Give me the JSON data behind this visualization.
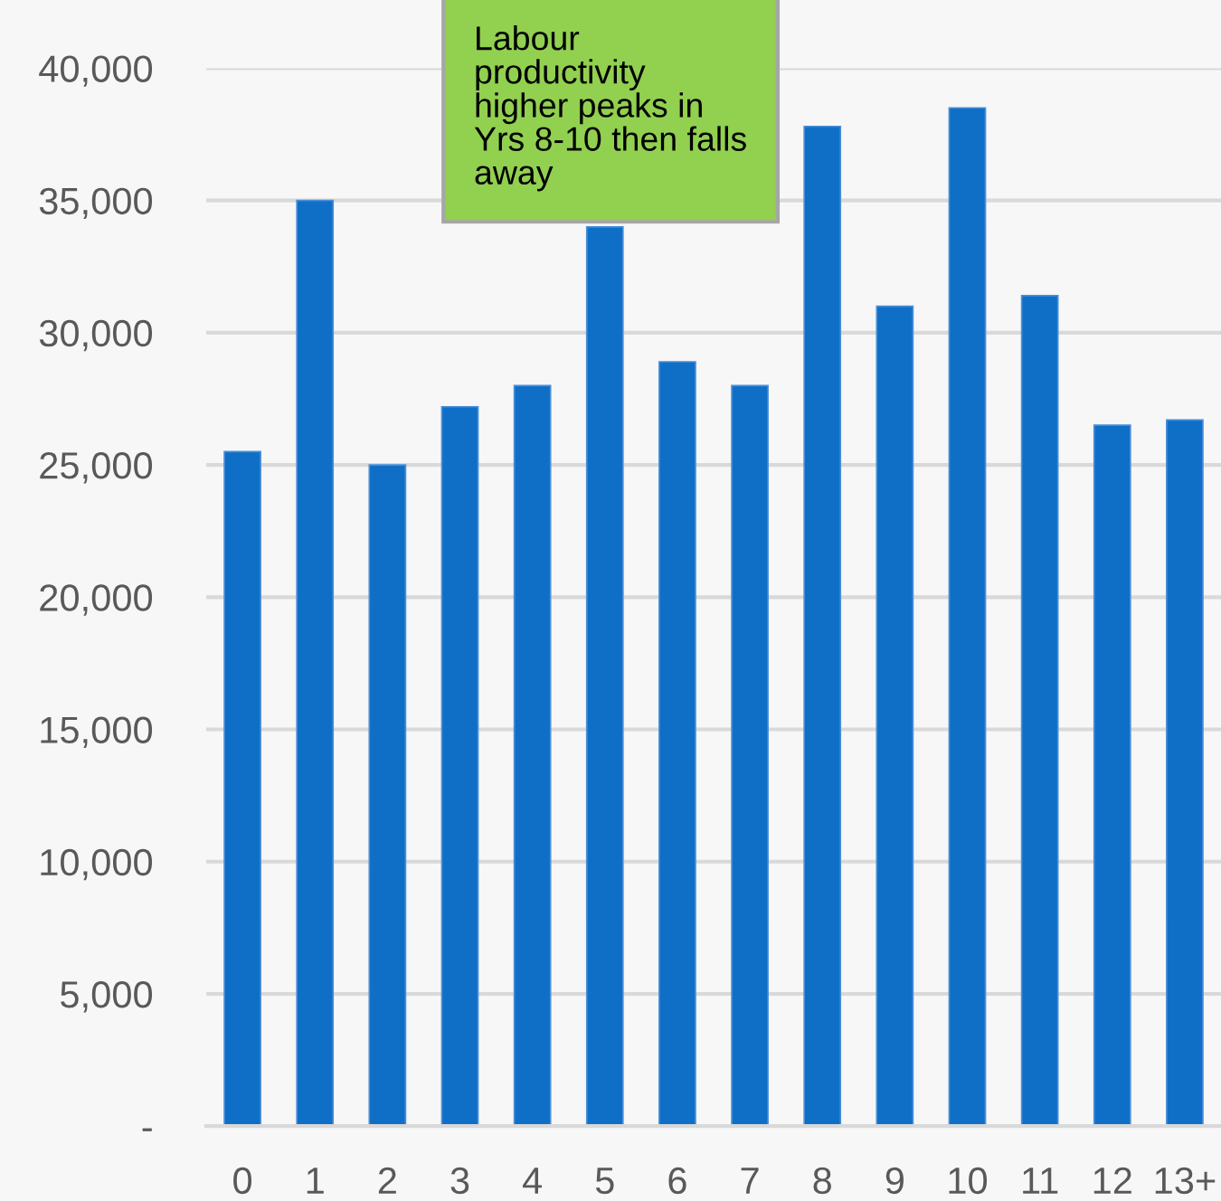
{
  "chart_data": {
    "type": "bar",
    "categories": [
      "0",
      "1",
      "2",
      "3",
      "4",
      "5",
      "6",
      "7",
      "8",
      "9",
      "10",
      "11",
      "12",
      "13+"
    ],
    "values": [
      25500,
      35000,
      25000,
      27200,
      28000,
      34000,
      28900,
      28000,
      37800,
      31000,
      38500,
      31400,
      26500,
      26700
    ],
    "color": "#0f6fc6",
    "ylim": [
      0,
      40000
    ],
    "yticks": [
      {
        "value": 0,
        "label": "-"
      },
      {
        "value": 5000,
        "label": "5,000"
      },
      {
        "value": 10000,
        "label": "10,000"
      },
      {
        "value": 15000,
        "label": "15,000"
      },
      {
        "value": 20000,
        "label": "20,000"
      },
      {
        "value": 25000,
        "label": "25,000"
      },
      {
        "value": 30000,
        "label": "30,000"
      },
      {
        "value": 35000,
        "label": "35,000"
      },
      {
        "value": 40000,
        "label": "40,000"
      }
    ],
    "grid": "y",
    "annotations": [
      "Labour\nproductivity\nhigher peaks in\nYrs 8-10 then falls\naway"
    ]
  }
}
